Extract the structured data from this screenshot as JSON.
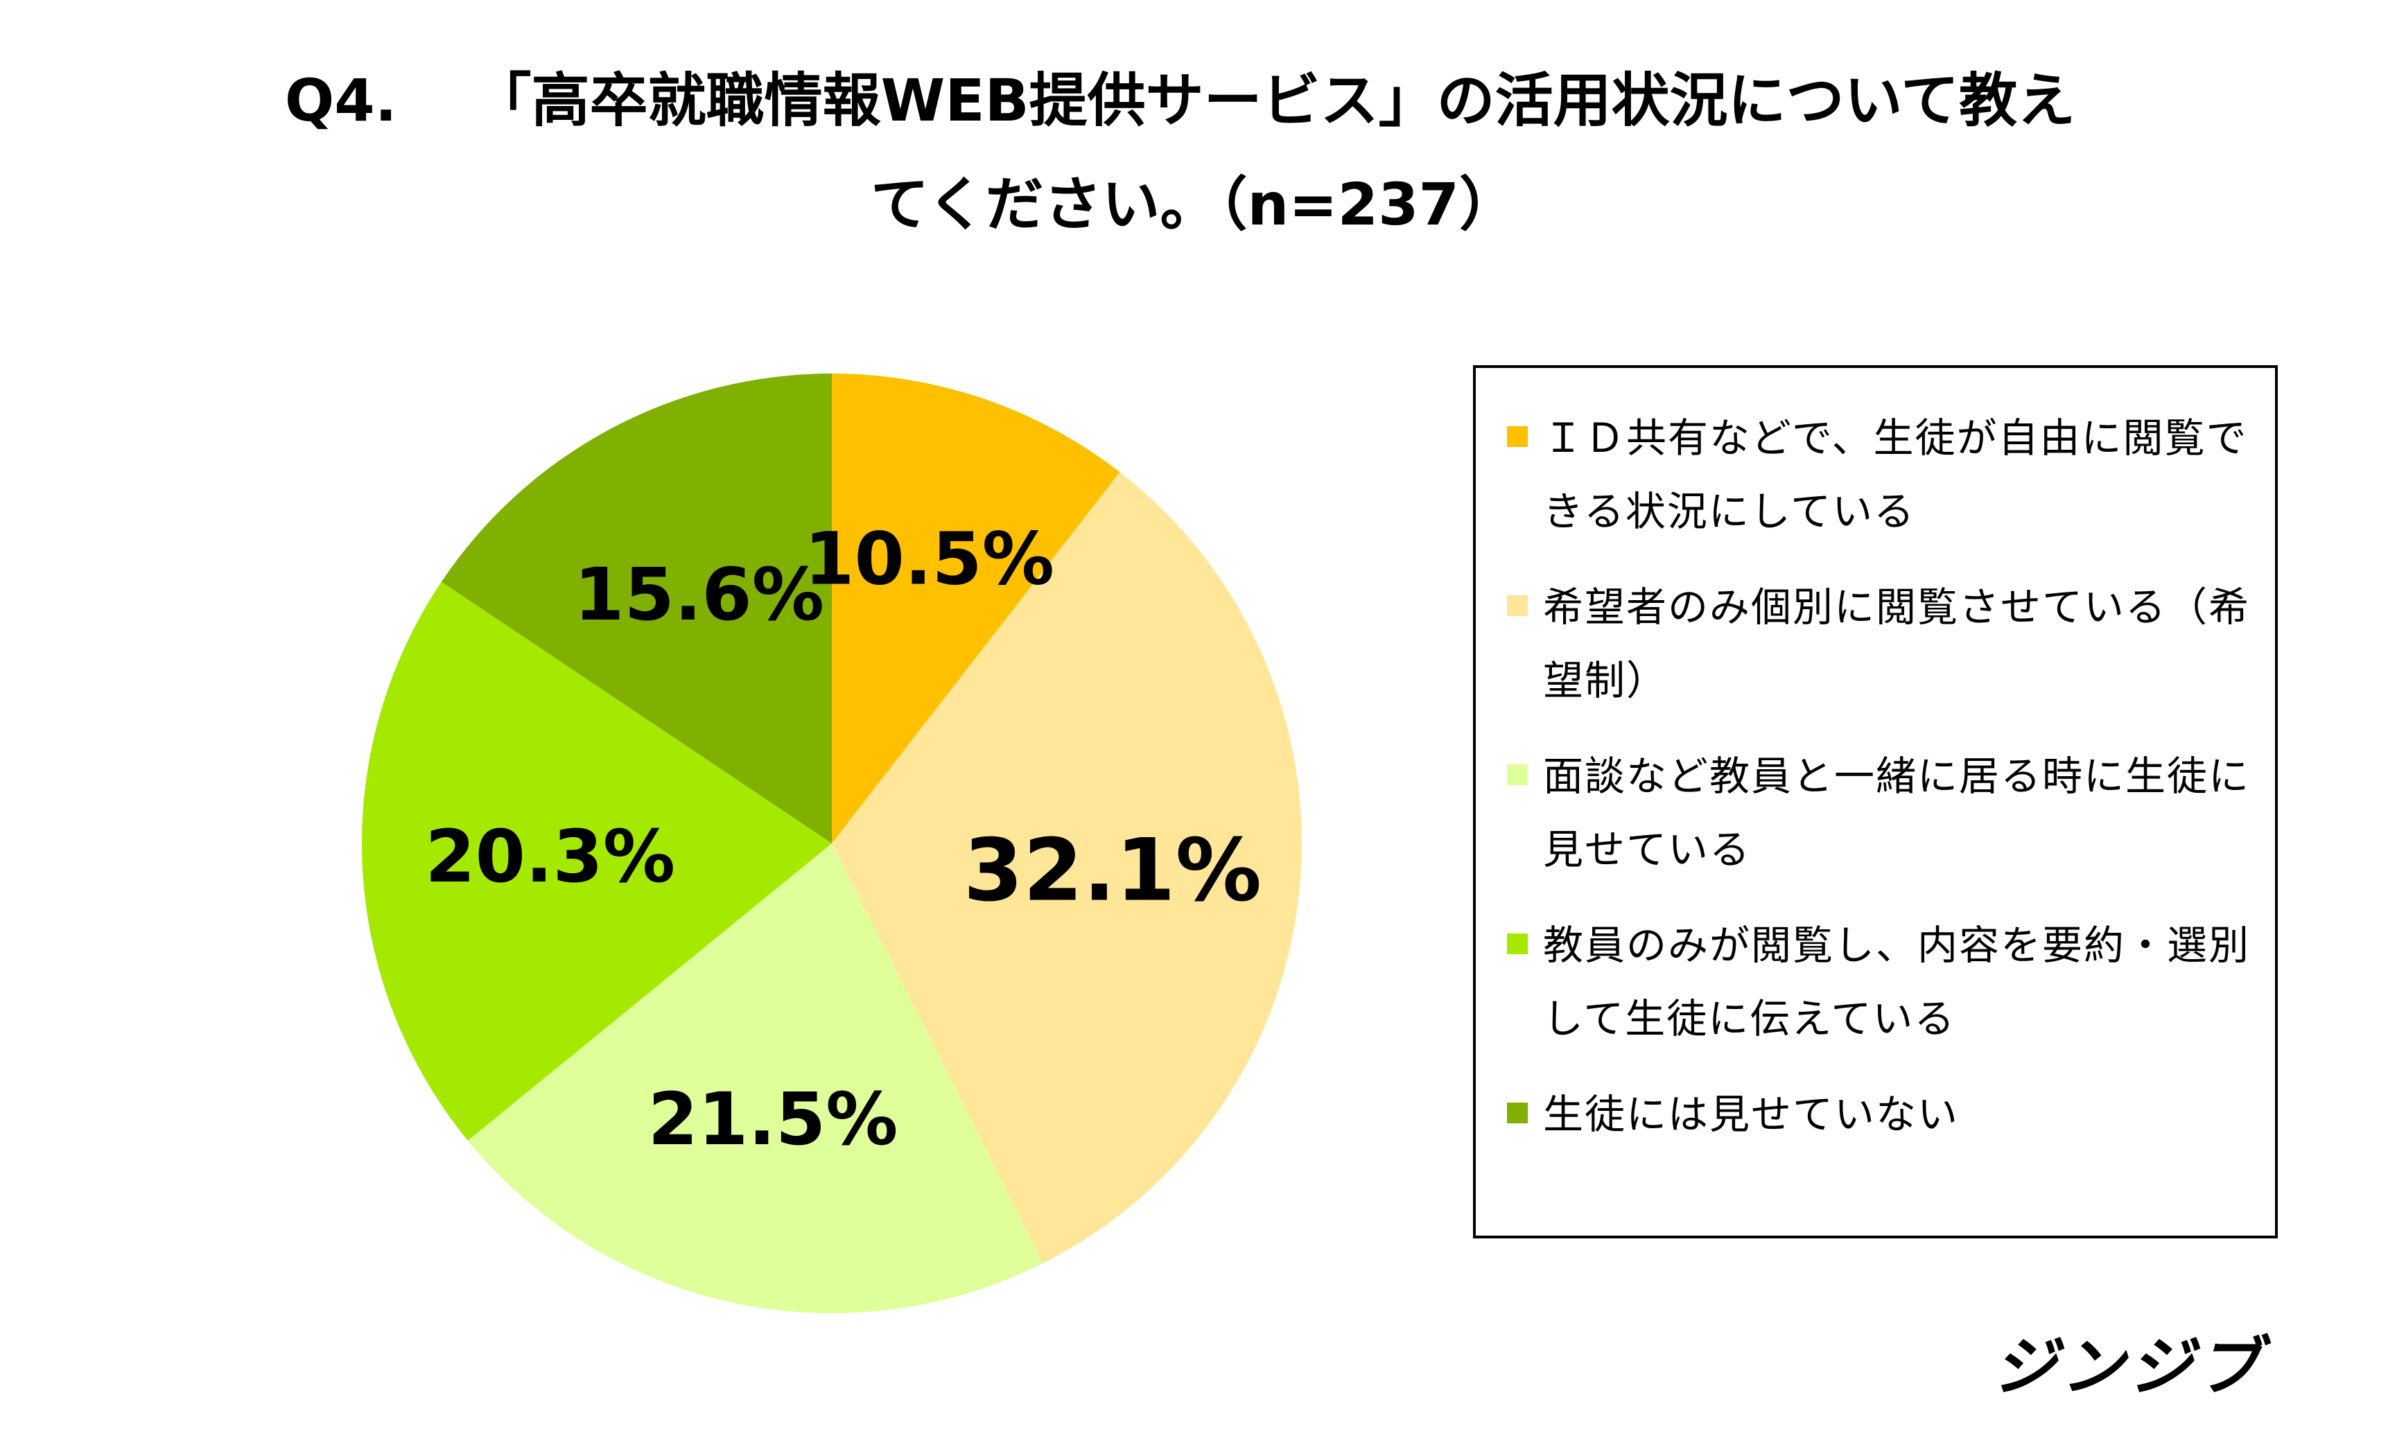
{
  "title_lines": [
    {
      "prefix": "Q4.",
      "text": "「高卒就職情報WEB提供サービス」の活用状況について教え"
    },
    {
      "prefix": "",
      "text": "てください。（n=237）"
    }
  ],
  "brand": "ジンジブ",
  "chart_data": {
    "type": "pie",
    "title": "Q4. 「高卒就職情報WEB提供サービス」の活用状況について教えてください。（n=237）",
    "unit": "%",
    "start_angle_deg": 0,
    "direction": "clockwise",
    "legend_position": "right",
    "slices": [
      {
        "label": "ＩＤ共有などで、生徒が自由に閲覧できる状況にしている",
        "value": 10.5,
        "display": "10.5%",
        "color": "#FFC000"
      },
      {
        "label": "希望者のみ個別に閲覧させている（希望制）",
        "value": 32.1,
        "display": "32.1%",
        "color": "#FFE699"
      },
      {
        "label": "面談など教員と一緒に居る時に生徒に見せている",
        "value": 21.5,
        "display": "21.5%",
        "color": "#DEFF99"
      },
      {
        "label": "教員のみが閲覧し、内容を要約・選別して生徒に伝えている",
        "value": 20.3,
        "display": "20.3%",
        "color": "#A5E900"
      },
      {
        "label": "生徒には見せていない",
        "value": 15.6,
        "display": "15.6%",
        "color": "#80B000"
      }
    ]
  }
}
